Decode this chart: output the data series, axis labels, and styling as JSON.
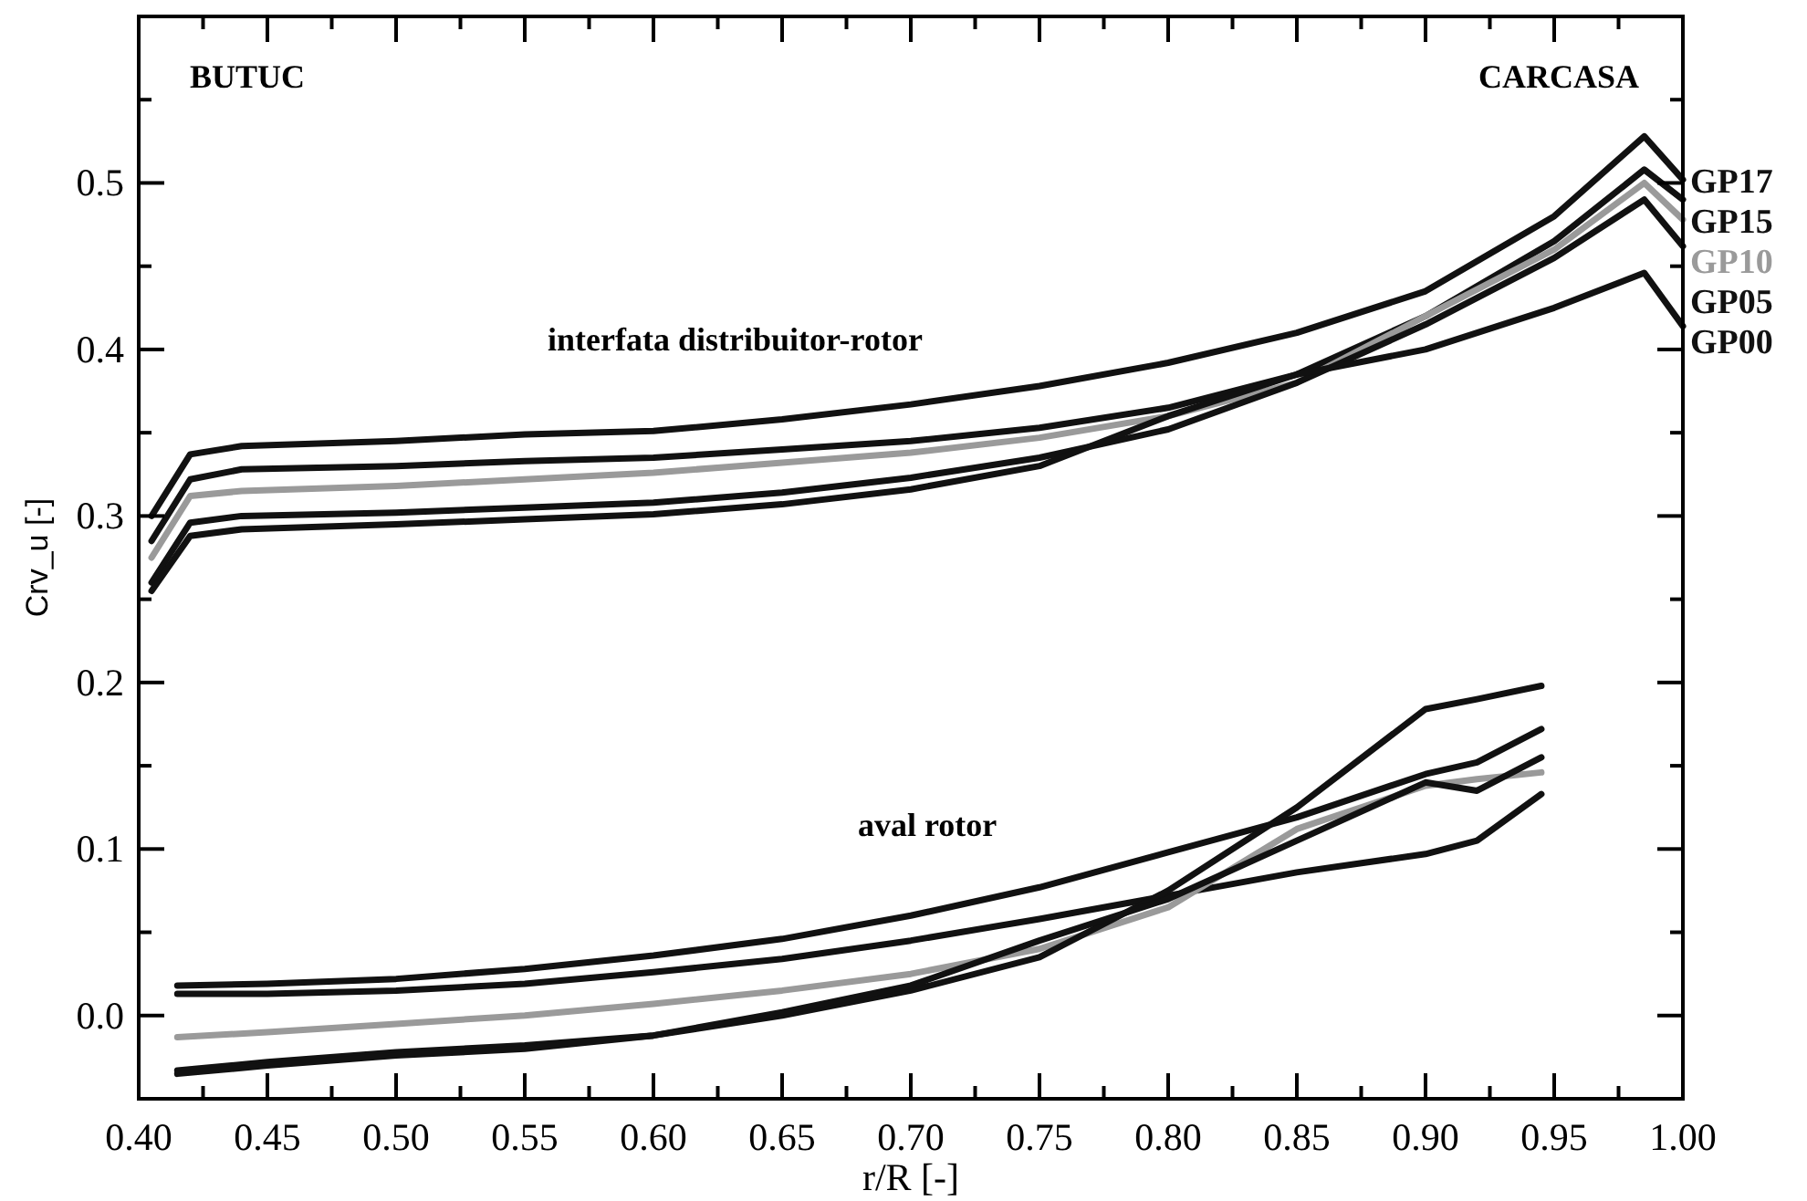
{
  "chart_data": {
    "type": "line",
    "xlabel": "r/R [-]",
    "ylabel": "Crv_u [-]",
    "xlim": [
      0.4,
      1.0
    ],
    "xticks": [
      {
        "value": 0.4,
        "label": "0.40"
      },
      {
        "value": 0.425,
        "label": null
      },
      {
        "value": 0.45,
        "label": "0.45"
      },
      {
        "value": 0.475,
        "label": null
      },
      {
        "value": 0.5,
        "label": "0.50"
      },
      {
        "value": 0.525,
        "label": null
      },
      0.55,
      {
        "value": 0.575,
        "label": null
      },
      {
        "value": 0.6,
        "label": "0.60"
      },
      {
        "value": 0.625,
        "label": null
      },
      0.65,
      {
        "value": 0.675,
        "label": null
      },
      {
        "value": 0.7,
        "label": "0.70"
      },
      {
        "value": 0.725,
        "label": null
      },
      0.75,
      {
        "value": 0.775,
        "label": null
      },
      {
        "value": 0.8,
        "label": "0.80"
      },
      {
        "value": 0.825,
        "label": null
      },
      0.85,
      {
        "value": 0.875,
        "label": null
      },
      {
        "value": 0.9,
        "label": "0.90"
      },
      {
        "value": 0.925,
        "label": null
      },
      0.95,
      {
        "value": 0.975,
        "label": null
      },
      {
        "value": 1.0,
        "label": "1.00"
      }
    ],
    "ylim": [
      -0.05,
      0.6
    ],
    "yticks": [
      {
        "value": 0,
        "label": "0.0"
      },
      {
        "value": 0.05,
        "label": null
      },
      0.1,
      {
        "value": 0.15,
        "label": null
      },
      0.2,
      {
        "value": 0.25,
        "label": null
      },
      0.3,
      {
        "value": 0.35,
        "label": null
      },
      0.4,
      {
        "value": 0.45,
        "label": null
      },
      0.5,
      {
        "value": 0.55,
        "label": null
      }
    ],
    "grid": false,
    "marker": "none",
    "line_style": "solid",
    "annotations": [
      "BUTUC",
      "CARCASA",
      "interfata distribuitor-rotor",
      "aval rotor"
    ],
    "series": [
      {
        "name": "GP17",
        "color": "#111111",
        "x": [
          0.405,
          0.42,
          0.44,
          0.5,
          0.55,
          0.6,
          0.65,
          0.7,
          0.75,
          0.8,
          0.85,
          0.9,
          0.95,
          0.985,
          1.0
        ],
        "values": [
          0.3,
          0.337,
          0.342,
          0.345,
          0.349,
          0.351,
          0.358,
          0.367,
          0.378,
          0.392,
          0.41,
          0.435,
          0.48,
          0.528,
          0.502
        ]
      },
      {
        "name": "GP15",
        "color": "#111111",
        "x": [
          0.405,
          0.42,
          0.44,
          0.5,
          0.55,
          0.6,
          0.65,
          0.7,
          0.75,
          0.8,
          0.85,
          0.9,
          0.95,
          0.985,
          1.0
        ],
        "values": [
          0.285,
          0.322,
          0.328,
          0.33,
          0.333,
          0.335,
          0.34,
          0.345,
          0.353,
          0.365,
          0.385,
          0.42,
          0.465,
          0.508,
          0.49
        ]
      },
      {
        "name": "GP10",
        "color": "#9a9a9a",
        "x": [
          0.405,
          0.42,
          0.44,
          0.5,
          0.55,
          0.6,
          0.65,
          0.7,
          0.75,
          0.8,
          0.85,
          0.9,
          0.95,
          0.985,
          1.0
        ],
        "values": [
          0.275,
          0.312,
          0.315,
          0.318,
          0.322,
          0.326,
          0.332,
          0.338,
          0.347,
          0.36,
          0.38,
          0.42,
          0.46,
          0.5,
          0.478
        ]
      },
      {
        "name": "GP05",
        "color": "#111111",
        "x": [
          0.405,
          0.42,
          0.44,
          0.5,
          0.55,
          0.6,
          0.65,
          0.7,
          0.75,
          0.8,
          0.85,
          0.9,
          0.95,
          0.985,
          1.0
        ],
        "values": [
          0.26,
          0.296,
          0.3,
          0.302,
          0.305,
          0.308,
          0.314,
          0.323,
          0.335,
          0.352,
          0.38,
          0.415,
          0.455,
          0.49,
          0.462
        ]
      },
      {
        "name": "GP00",
        "color": "#111111",
        "x": [
          0.405,
          0.42,
          0.44,
          0.5,
          0.55,
          0.6,
          0.65,
          0.7,
          0.75,
          0.8,
          0.85,
          0.9,
          0.95,
          0.985,
          1.0
        ],
        "values": [
          0.255,
          0.288,
          0.292,
          0.295,
          0.298,
          0.301,
          0.307,
          0.316,
          0.33,
          0.36,
          0.385,
          0.4,
          0.425,
          0.446,
          0.414
        ]
      },
      {
        "color": "#111111",
        "x": [
          0.415,
          0.45,
          0.5,
          0.55,
          0.6,
          0.65,
          0.7,
          0.75,
          0.8,
          0.85,
          0.9,
          0.92,
          0.945
        ],
        "values": [
          0.018,
          0.019,
          0.022,
          0.028,
          0.036,
          0.046,
          0.06,
          0.077,
          0.098,
          0.119,
          0.145,
          0.152,
          0.172
        ]
      },
      {
        "color": "#111111",
        "x": [
          0.415,
          0.45,
          0.5,
          0.55,
          0.6,
          0.65,
          0.7,
          0.75,
          0.8,
          0.85,
          0.9,
          0.92,
          0.945
        ],
        "values": [
          0.013,
          0.013,
          0.015,
          0.019,
          0.026,
          0.034,
          0.045,
          0.058,
          0.072,
          0.086,
          0.097,
          0.105,
          0.133
        ]
      },
      {
        "color": "#9a9a9a",
        "x": [
          0.415,
          0.45,
          0.5,
          0.55,
          0.6,
          0.65,
          0.7,
          0.75,
          0.8,
          0.85,
          0.9,
          0.92,
          0.945
        ],
        "values": [
          -0.013,
          -0.01,
          -0.005,
          0.0,
          0.007,
          0.015,
          0.025,
          0.04,
          0.065,
          0.112,
          0.138,
          0.142,
          0.146
        ]
      },
      {
        "color": "#111111",
        "x": [
          0.415,
          0.45,
          0.5,
          0.55,
          0.6,
          0.65,
          0.7,
          0.75,
          0.8,
          0.85,
          0.9,
          0.92,
          0.945
        ],
        "values": [
          -0.033,
          -0.028,
          -0.022,
          -0.018,
          -0.012,
          0.0,
          0.015,
          0.035,
          0.075,
          0.125,
          0.184,
          0.19,
          0.198
        ]
      },
      {
        "color": "#111111",
        "x": [
          0.415,
          0.45,
          0.5,
          0.55,
          0.6,
          0.65,
          0.7,
          0.75,
          0.8,
          0.85,
          0.9,
          0.92,
          0.945
        ],
        "values": [
          -0.035,
          -0.03,
          -0.024,
          -0.02,
          -0.012,
          0.002,
          0.018,
          0.045,
          0.07,
          0.105,
          0.14,
          0.135,
          0.155
        ]
      }
    ]
  }
}
